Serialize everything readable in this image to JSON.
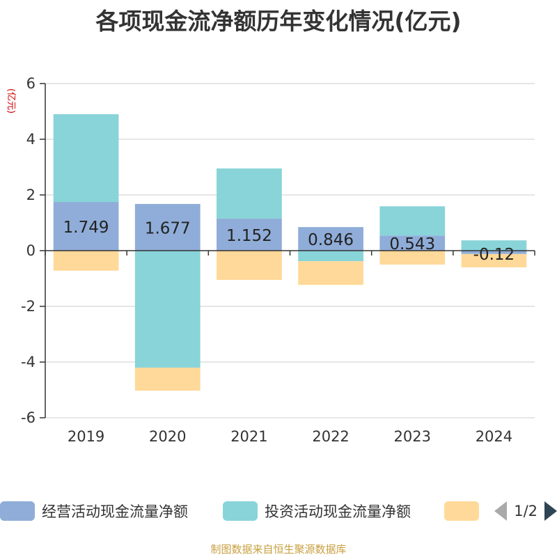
{
  "title": "各项现金流净额历年变化情况(亿元)",
  "y_unit": "(亿元)",
  "legend": {
    "items": [
      {
        "label": "经营活动现金流量净额",
        "color": "#8fadd8"
      },
      {
        "label": "投资活动现金流量净额",
        "color": "#88d4d8"
      },
      {
        "label": "",
        "color": "#ffd999"
      }
    ],
    "page_text": "1/2"
  },
  "source": "制图数据来自恒生聚源数据库",
  "chart_data": {
    "type": "bar",
    "stacked": true,
    "categories": [
      "2019",
      "2020",
      "2021",
      "2022",
      "2023",
      "2024"
    ],
    "series": [
      {
        "name": "经营活动现金流量净额",
        "color": "#8fadd8",
        "values": [
          1.749,
          1.677,
          1.152,
          0.846,
          0.543,
          -0.12
        ],
        "labels": [
          "1.749",
          "1.677",
          "1.152",
          "0.846",
          "0.543",
          "-0.12"
        ]
      },
      {
        "name": "投资活动现金流量净额",
        "color": "#88d4d8",
        "values": [
          3.15,
          -4.2,
          1.8,
          -0.38,
          1.05,
          0.37
        ]
      },
      {
        "color": "#ffd999",
        "values": [
          -0.72,
          -0.83,
          -1.05,
          -0.85,
          -0.5,
          -0.48
        ]
      }
    ],
    "yticks": [
      6,
      4,
      2,
      0,
      -2,
      -4,
      -6
    ],
    "ylim": [
      -6,
      6
    ],
    "grid": true
  }
}
